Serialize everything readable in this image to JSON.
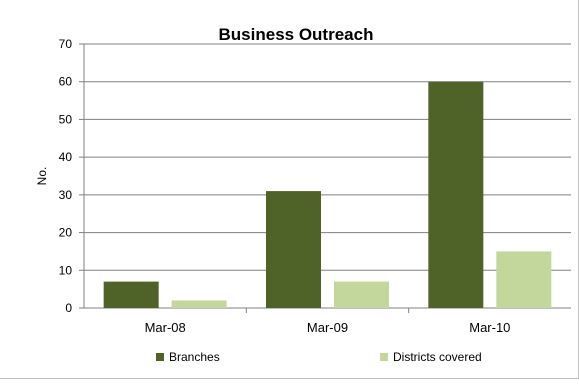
{
  "chart_data": {
    "type": "bar",
    "title": "Business Outreach",
    "xlabel": "",
    "ylabel": "No.",
    "categories": [
      "Mar-08",
      "Mar-09",
      "Mar-10"
    ],
    "series": [
      {
        "name": "Branches",
        "values": [
          7,
          31,
          60
        ],
        "color": "#4f6228"
      },
      {
        "name": "Districts covered",
        "values": [
          2,
          7,
          15
        ],
        "color": "#c3d69b"
      }
    ],
    "ylim": [
      0,
      70
    ],
    "yticks": [
      0,
      10,
      20,
      30,
      40,
      50,
      60,
      70
    ],
    "grid": true,
    "legend_position": "bottom"
  }
}
